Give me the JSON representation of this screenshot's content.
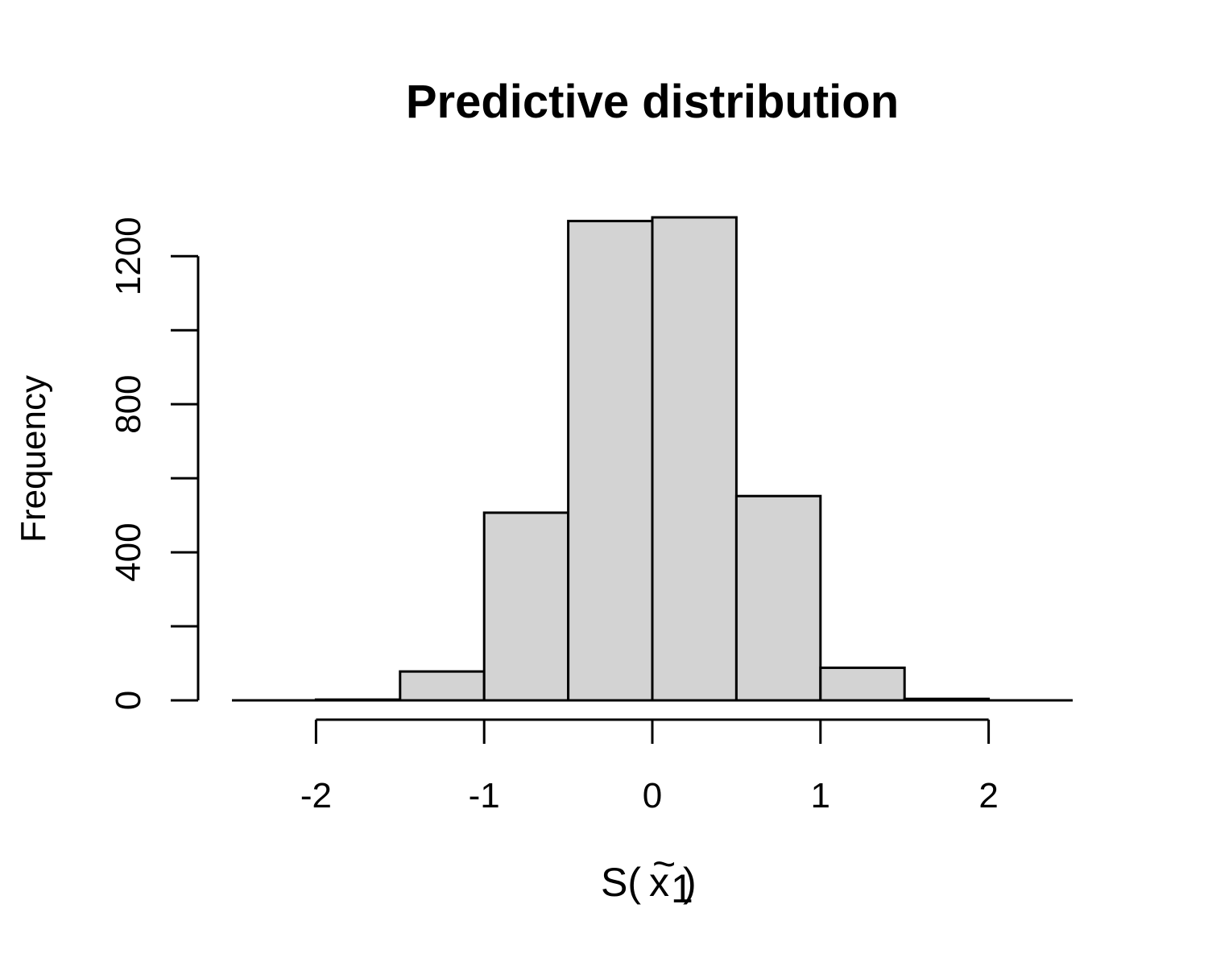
{
  "chart_data": {
    "type": "bar",
    "title": "Predictive distribution",
    "xlabel": {
      "prefix": "S(",
      "symbol": "x",
      "accent": "~",
      "subscript": "1",
      "suffix": ")"
    },
    "ylabel": "Frequency",
    "bin_edges": [
      -2.5,
      -2,
      -1.5,
      -1,
      -0.5,
      0,
      0.5,
      1,
      1.5,
      2,
      2.5
    ],
    "values": [
      0,
      2,
      78,
      507,
      1295,
      1305,
      552,
      88,
      4,
      0
    ],
    "xlim": [
      -2.5,
      2.5
    ],
    "ylim": [
      0,
      1305
    ],
    "x_ticks": [
      -2,
      -1,
      0,
      1,
      2
    ],
    "x_tick_labels": [
      "-2",
      "-1",
      "0",
      "1",
      "2"
    ],
    "y_ticks": [
      0,
      200,
      400,
      600,
      800,
      1000,
      1200
    ],
    "y_tick_labels": [
      "0",
      "",
      "400",
      "",
      "800",
      "",
      "1200"
    ],
    "grid": false,
    "legend": "none",
    "colors": {
      "bar_fill": "#d3d3d3",
      "bar_stroke": "#000000",
      "axis": "#000000"
    }
  }
}
